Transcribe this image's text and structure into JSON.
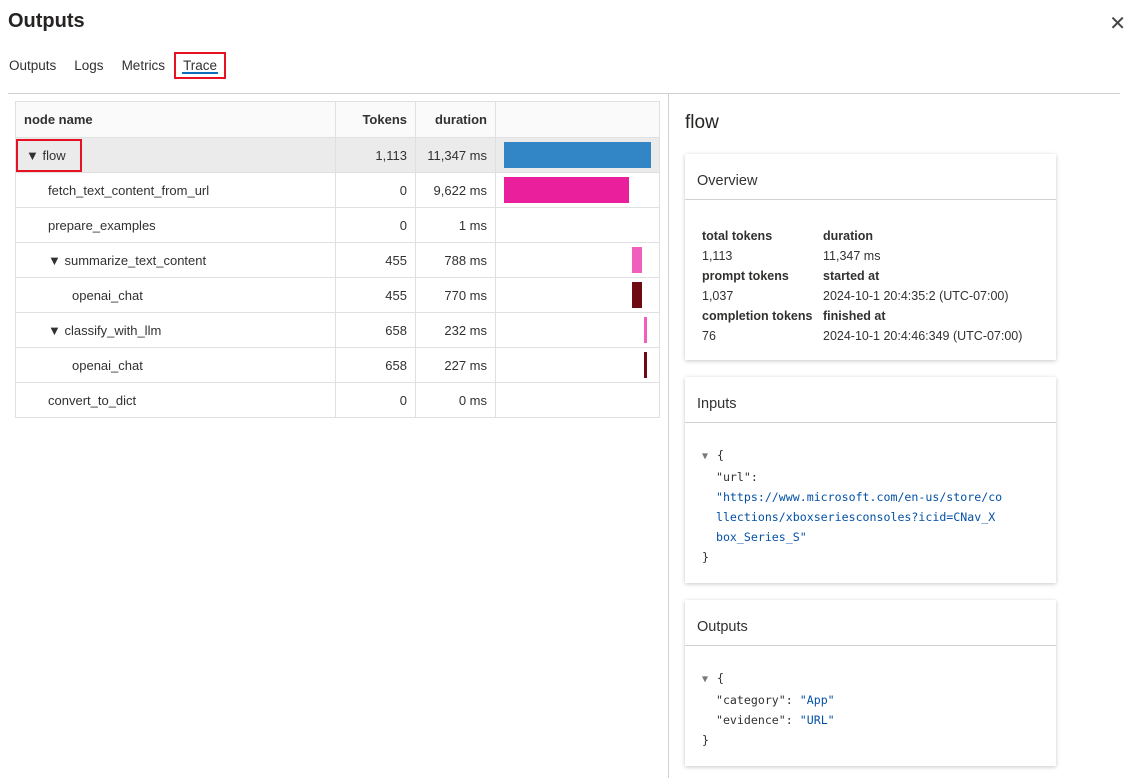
{
  "title": "Outputs",
  "tabs": [
    {
      "label": "Outputs"
    },
    {
      "label": "Logs"
    },
    {
      "label": "Metrics"
    },
    {
      "label": "Trace"
    }
  ],
  "active_tab": "Trace",
  "table": {
    "headers": {
      "name": "node name",
      "tokens": "Tokens",
      "duration": "duration"
    },
    "total_ms": 11347,
    "rows": [
      {
        "name": "flow",
        "tokens": "1,113",
        "duration": "11,347 ms",
        "start_ms": 0,
        "dur_ms": 11347,
        "color": "#3286c6",
        "indent": 0,
        "expanded": true
      },
      {
        "name": "fetch_text_content_from_url",
        "tokens": "0",
        "duration": "9,622 ms",
        "start_ms": 0,
        "dur_ms": 9622,
        "color": "#e91f9b",
        "indent": 1
      },
      {
        "name": "prepare_examples",
        "tokens": "0",
        "duration": "1 ms",
        "start_ms": 9622,
        "dur_ms": 1,
        "color": "#e91f9b",
        "indent": 1
      },
      {
        "name": "summarize_text_content",
        "tokens": "455",
        "duration": "788 ms",
        "start_ms": 9880,
        "dur_ms": 788,
        "color": "#ef5fbb",
        "indent": 1,
        "expanded": true
      },
      {
        "name": "openai_chat",
        "tokens": "455",
        "duration": "770 ms",
        "start_ms": 9880,
        "dur_ms": 770,
        "color": "#6e0a12",
        "indent": 2
      },
      {
        "name": "classify_with_llm",
        "tokens": "658",
        "duration": "232 ms",
        "start_ms": 10800,
        "dur_ms": 232,
        "color": "#ef5fbb",
        "indent": 1,
        "expanded": true
      },
      {
        "name": "openai_chat",
        "tokens": "658",
        "duration": "227 ms",
        "start_ms": 10800,
        "dur_ms": 227,
        "color": "#6e0a12",
        "indent": 2
      },
      {
        "name": "convert_to_dict",
        "tokens": "0",
        "duration": "0 ms",
        "start_ms": 11347,
        "dur_ms": 0,
        "color": "#e91f9b",
        "indent": 1
      }
    ]
  },
  "detail": {
    "title": "flow",
    "overview": {
      "heading": "Overview",
      "total_tokens_label": "total tokens",
      "total_tokens": "1,113",
      "duration_label": "duration",
      "duration": "11,347 ms",
      "prompt_tokens_label": "prompt tokens",
      "prompt_tokens": "1,037",
      "started_label": "started at",
      "started": "2024-10-1 20:4:35:2 (UTC-07:00)",
      "completion_tokens_label": "completion tokens",
      "completion_tokens": "76",
      "finished_label": "finished at",
      "finished": "2024-10-1 20:4:46:349 (UTC-07:00)"
    },
    "inputs": {
      "heading": "Inputs",
      "key": "\"url\"",
      "value_lines": [
        "\"https://www.microsoft.com/en-us/store/co",
        "llections/xboxseriesconsoles?icid=CNav_X",
        "box_Series_S\""
      ]
    },
    "outputs": {
      "heading": "Outputs",
      "category_key": "\"category\"",
      "category": "\"App\"",
      "evidence_key": "\"evidence\"",
      "evidence": "\"URL\""
    }
  }
}
